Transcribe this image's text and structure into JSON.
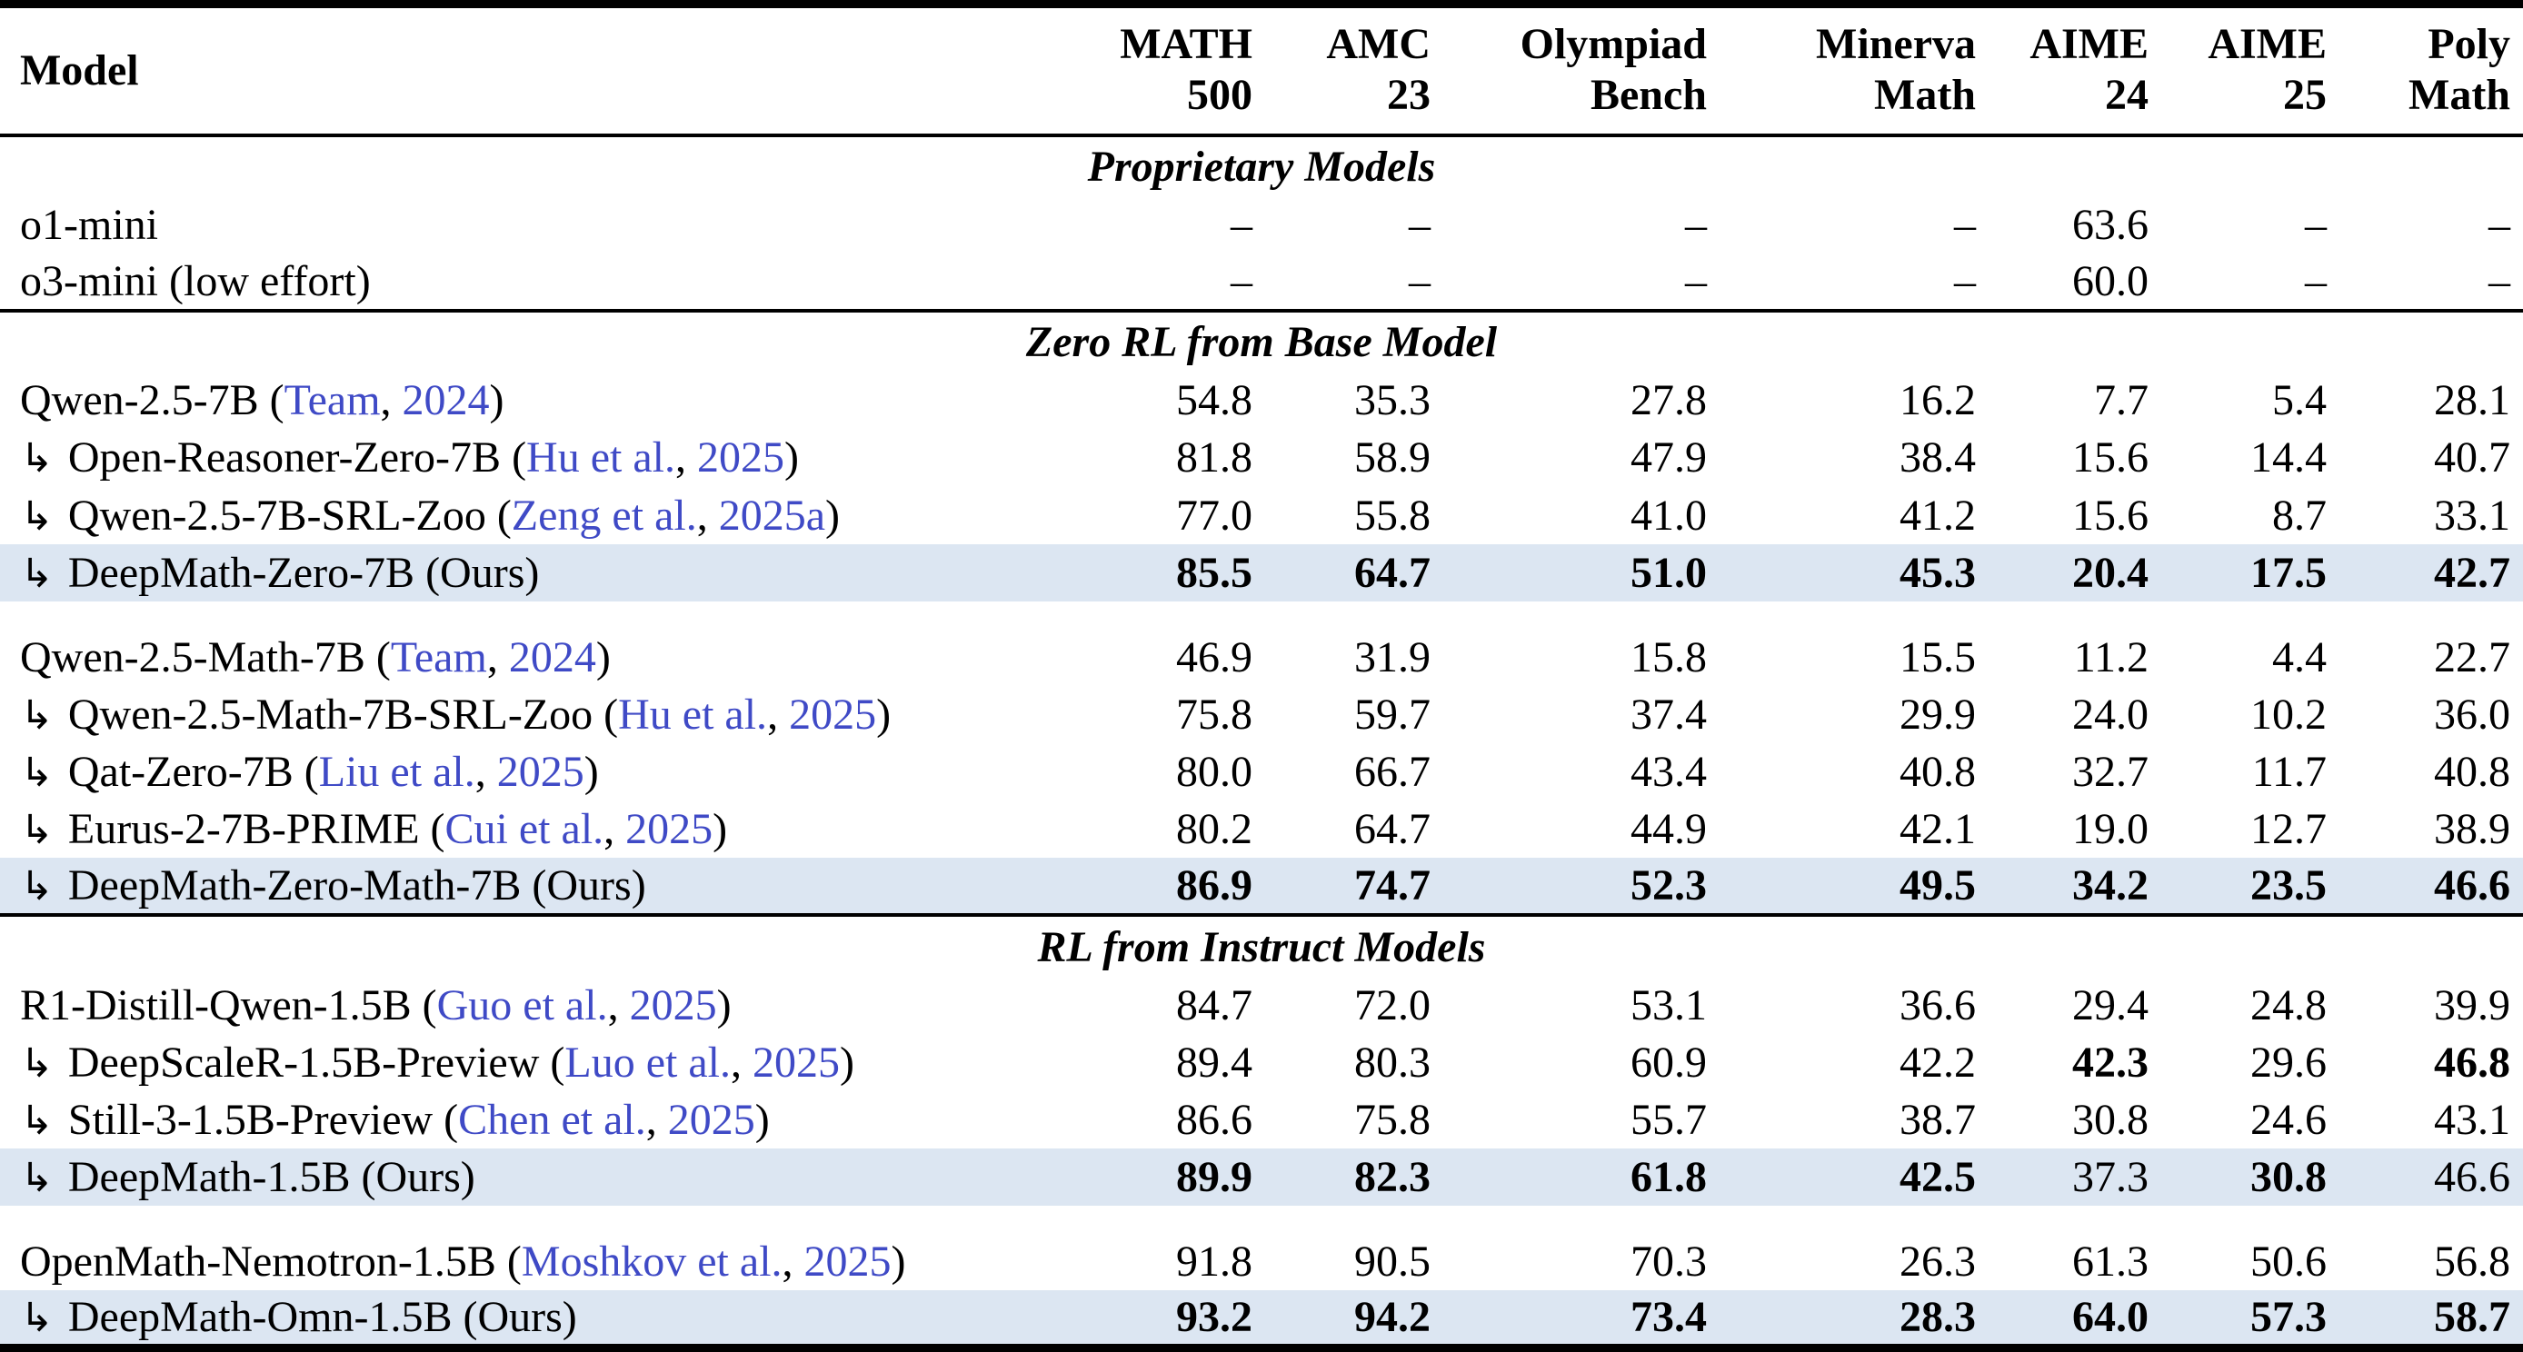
{
  "table": {
    "indent_arrow": "↳",
    "ours_label": "(Ours)",
    "colors": {
      "row_highlight": "#dce6f2",
      "citation_blue": "#3f4ac6"
    },
    "header": {
      "model_col": "Model",
      "benchmarks": [
        [
          "MATH",
          "500"
        ],
        [
          "AMC",
          "23"
        ],
        [
          "Olympiad",
          "Bench"
        ],
        [
          "Minerva",
          "Math"
        ],
        [
          "AIME",
          "24"
        ],
        [
          "AIME",
          "25"
        ],
        [
          "Poly",
          "Math"
        ]
      ]
    },
    "sections": [
      {
        "title": "Proprietary Models",
        "groups": [
          {
            "rows": [
              {
                "indent": false,
                "name": "o1-mini",
                "cite": null,
                "ours": false,
                "highlight": false,
                "values": [
                  "–",
                  "–",
                  "–",
                  "–",
                  "63.6",
                  "–",
                  "–"
                ],
                "bold_idx": []
              },
              {
                "indent": false,
                "name": "o3-mini (low effort)",
                "cite": null,
                "ours": false,
                "highlight": false,
                "values": [
                  "–",
                  "–",
                  "–",
                  "–",
                  "60.0",
                  "–",
                  "–"
                ],
                "bold_idx": []
              }
            ]
          }
        ]
      },
      {
        "title": "Zero RL from Base Model",
        "groups": [
          {
            "rows": [
              {
                "indent": false,
                "name": "Qwen-2.5-7B",
                "cite": {
                  "authors": "Team",
                  "year": "2024"
                },
                "ours": false,
                "highlight": false,
                "values": [
                  "54.8",
                  "35.3",
                  "27.8",
                  "16.2",
                  "7.7",
                  "5.4",
                  "28.1"
                ],
                "bold_idx": []
              },
              {
                "indent": true,
                "name": "Open-Reasoner-Zero-7B",
                "cite": {
                  "authors": "Hu et al.",
                  "year": "2025"
                },
                "ours": false,
                "highlight": false,
                "values": [
                  "81.8",
                  "58.9",
                  "47.9",
                  "38.4",
                  "15.6",
                  "14.4",
                  "40.7"
                ],
                "bold_idx": []
              },
              {
                "indent": true,
                "name": "Qwen-2.5-7B-SRL-Zoo",
                "cite": {
                  "authors": "Zeng et al.",
                  "year": "2025a"
                },
                "ours": false,
                "highlight": false,
                "values": [
                  "77.0",
                  "55.8",
                  "41.0",
                  "41.2",
                  "15.6",
                  "8.7",
                  "33.1"
                ],
                "bold_idx": []
              },
              {
                "indent": true,
                "name": "DeepMath-Zero-7B",
                "cite": null,
                "ours": true,
                "highlight": true,
                "values": [
                  "85.5",
                  "64.7",
                  "51.0",
                  "45.3",
                  "20.4",
                  "17.5",
                  "42.7"
                ],
                "bold_idx": [
                  0,
                  1,
                  2,
                  3,
                  4,
                  5,
                  6
                ]
              }
            ]
          },
          {
            "rows": [
              {
                "indent": false,
                "name": "Qwen-2.5-Math-7B",
                "cite": {
                  "authors": "Team",
                  "year": "2024"
                },
                "ours": false,
                "highlight": false,
                "values": [
                  "46.9",
                  "31.9",
                  "15.8",
                  "15.5",
                  "11.2",
                  "4.4",
                  "22.7"
                ],
                "bold_idx": []
              },
              {
                "indent": true,
                "name": "Qwen-2.5-Math-7B-SRL-Zoo",
                "cite": {
                  "authors": "Hu et al.",
                  "year": "2025"
                },
                "ours": false,
                "highlight": false,
                "values": [
                  "75.8",
                  "59.7",
                  "37.4",
                  "29.9",
                  "24.0",
                  "10.2",
                  "36.0"
                ],
                "bold_idx": []
              },
              {
                "indent": true,
                "name": "Qat-Zero-7B",
                "cite": {
                  "authors": "Liu et al.",
                  "year": "2025"
                },
                "ours": false,
                "highlight": false,
                "values": [
                  "80.0",
                  "66.7",
                  "43.4",
                  "40.8",
                  "32.7",
                  "11.7",
                  "40.8"
                ],
                "bold_idx": []
              },
              {
                "indent": true,
                "name": "Eurus-2-7B-PRIME",
                "cite": {
                  "authors": "Cui et al.",
                  "year": "2025"
                },
                "ours": false,
                "highlight": false,
                "values": [
                  "80.2",
                  "64.7",
                  "44.9",
                  "42.1",
                  "19.0",
                  "12.7",
                  "38.9"
                ],
                "bold_idx": []
              },
              {
                "indent": true,
                "name": "DeepMath-Zero-Math-7B",
                "cite": null,
                "ours": true,
                "highlight": true,
                "values": [
                  "86.9",
                  "74.7",
                  "52.3",
                  "49.5",
                  "34.2",
                  "23.5",
                  "46.6"
                ],
                "bold_idx": [
                  0,
                  1,
                  2,
                  3,
                  4,
                  5,
                  6
                ]
              }
            ]
          }
        ]
      },
      {
        "title": "RL from Instruct Models",
        "groups": [
          {
            "rows": [
              {
                "indent": false,
                "name": "R1-Distill-Qwen-1.5B",
                "cite": {
                  "authors": "Guo et al.",
                  "year": "2025"
                },
                "ours": false,
                "highlight": false,
                "values": [
                  "84.7",
                  "72.0",
                  "53.1",
                  "36.6",
                  "29.4",
                  "24.8",
                  "39.9"
                ],
                "bold_idx": []
              },
              {
                "indent": true,
                "name": "DeepScaleR-1.5B-Preview",
                "cite": {
                  "authors": "Luo et al.",
                  "year": "2025"
                },
                "ours": false,
                "highlight": false,
                "values": [
                  "89.4",
                  "80.3",
                  "60.9",
                  "42.2",
                  "42.3",
                  "29.6",
                  "46.8"
                ],
                "bold_idx": [
                  4,
                  6
                ]
              },
              {
                "indent": true,
                "name": "Still-3-1.5B-Preview",
                "cite": {
                  "authors": "Chen et al.",
                  "year": "2025"
                },
                "ours": false,
                "highlight": false,
                "values": [
                  "86.6",
                  "75.8",
                  "55.7",
                  "38.7",
                  "30.8",
                  "24.6",
                  "43.1"
                ],
                "bold_idx": []
              },
              {
                "indent": true,
                "name": "DeepMath-1.5B",
                "cite": null,
                "ours": true,
                "highlight": true,
                "values": [
                  "89.9",
                  "82.3",
                  "61.8",
                  "42.5",
                  "37.3",
                  "30.8",
                  "46.6"
                ],
                "bold_idx": [
                  0,
                  1,
                  2,
                  3,
                  5
                ]
              }
            ]
          },
          {
            "rows": [
              {
                "indent": false,
                "name": "OpenMath-Nemotron-1.5B",
                "cite": {
                  "authors": "Moshkov et al.",
                  "year": "2025"
                },
                "ours": false,
                "highlight": false,
                "values": [
                  "91.8",
                  "90.5",
                  "70.3",
                  "26.3",
                  "61.3",
                  "50.6",
                  "56.8"
                ],
                "bold_idx": []
              },
              {
                "indent": true,
                "name": "DeepMath-Omn-1.5B",
                "cite": null,
                "ours": true,
                "highlight": true,
                "values": [
                  "93.2",
                  "94.2",
                  "73.4",
                  "28.3",
                  "64.0",
                  "57.3",
                  "58.7"
                ],
                "bold_idx": [
                  0,
                  1,
                  2,
                  3,
                  4,
                  5,
                  6
                ]
              }
            ]
          }
        ]
      }
    ]
  }
}
